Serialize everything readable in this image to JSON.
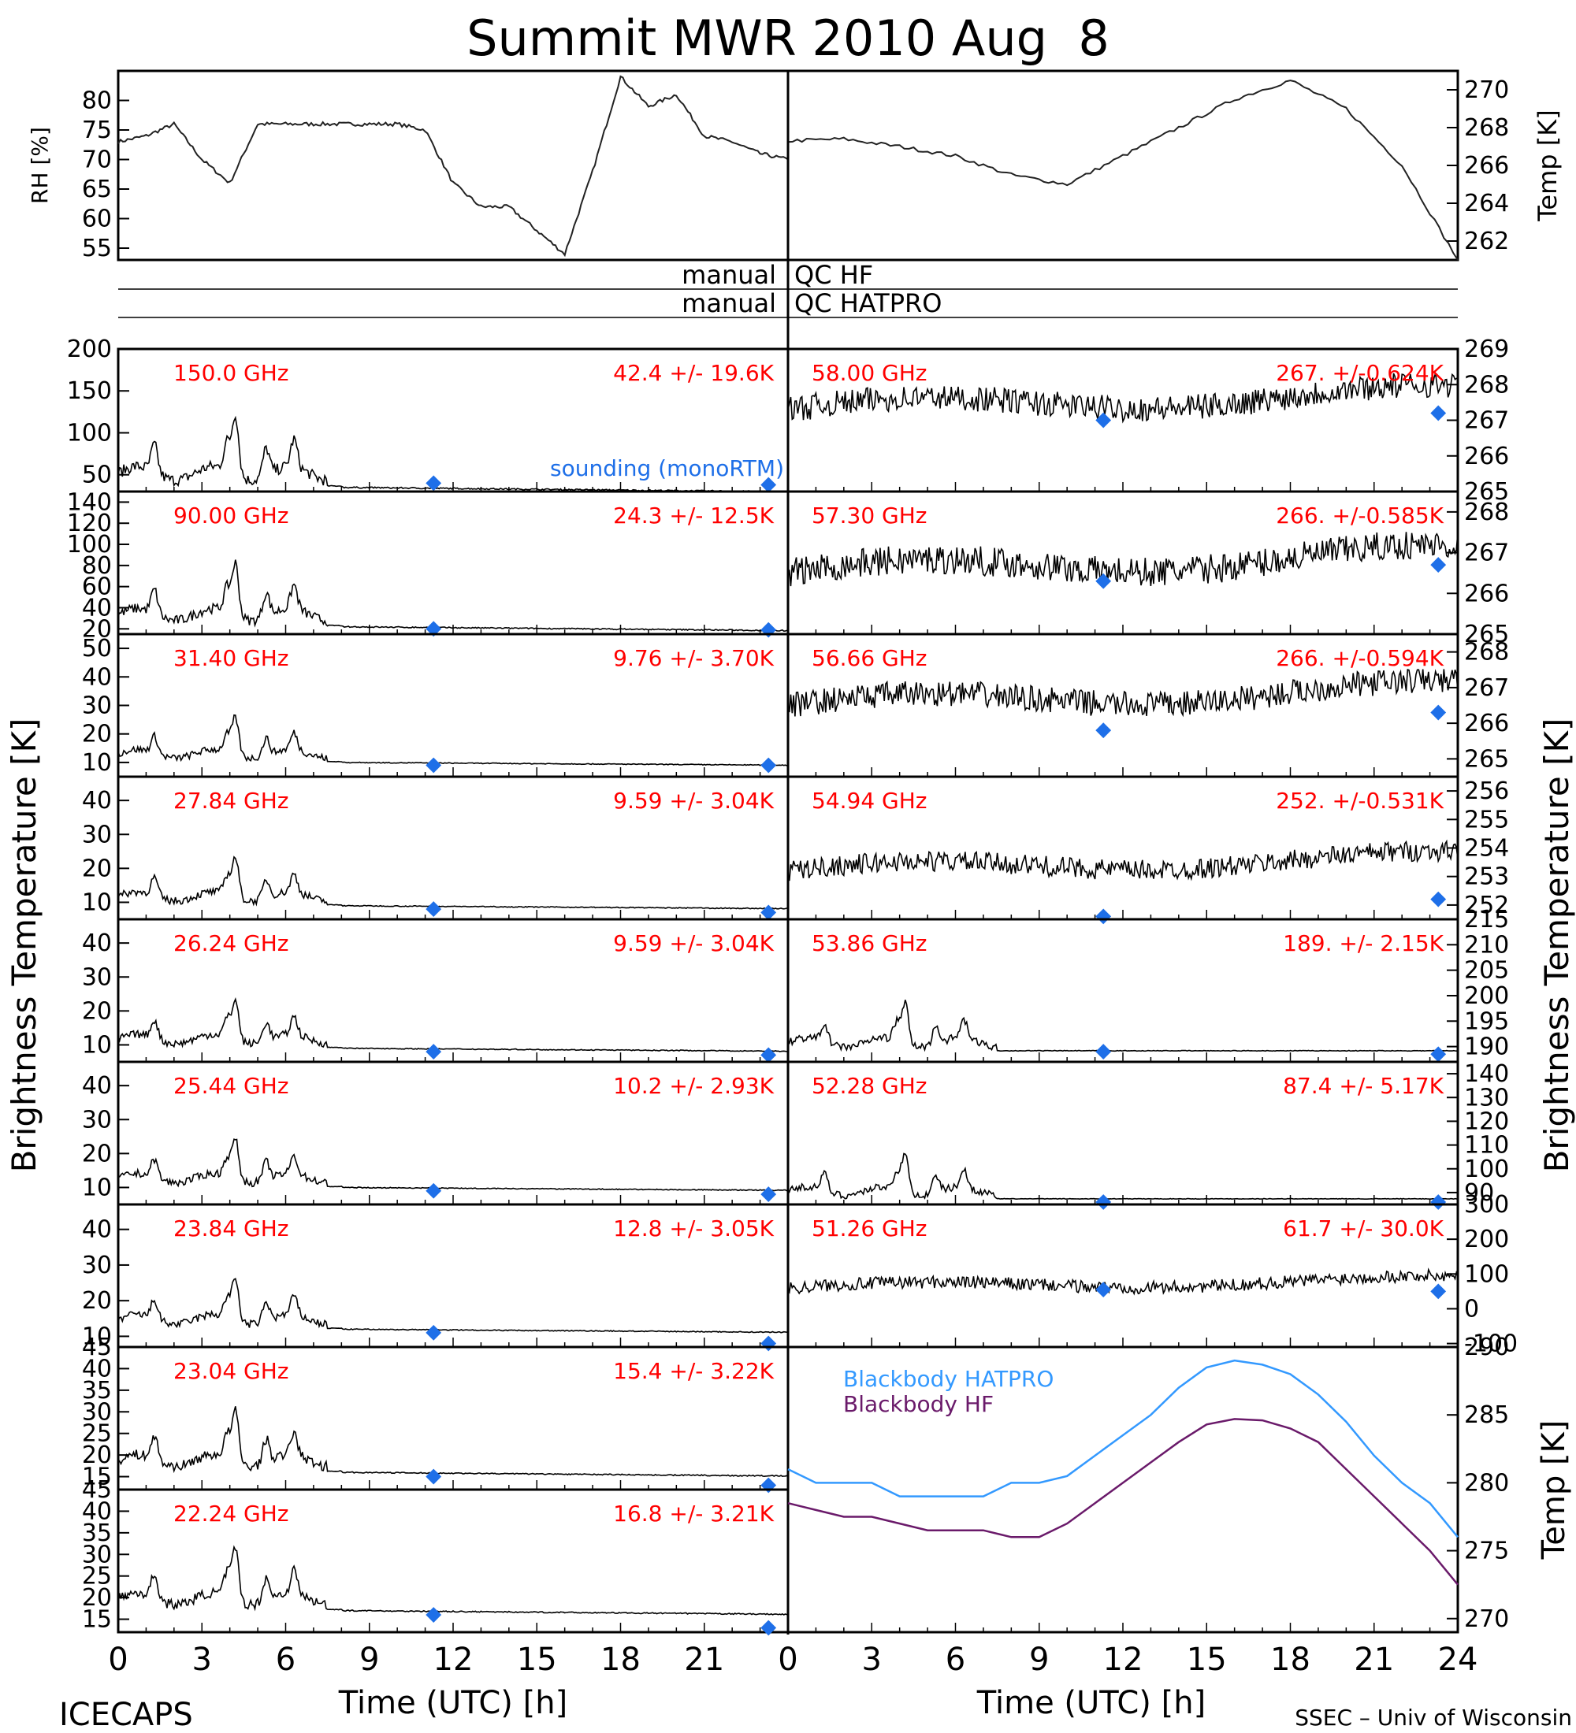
{
  "page": {
    "title": "Summit MWR 2010 Aug  8",
    "footer_left": "ICECAPS",
    "footer_right": "SSEC – Univ of Wisconsin",
    "brightness_ylabel": "Brightness Temperature [K]"
  },
  "qc": {
    "row1_left": "manual",
    "row1_right": "QC HF",
    "row2_left": "manual",
    "row2_right": "QC HATPRO"
  },
  "colors": {
    "trace": "#000000",
    "label_red": "#ff0000",
    "sounding_blue": "#1e6fe8",
    "hatpro_blue": "#3399ff",
    "hf_purple": "#6a1a6a"
  },
  "chart_data": [
    {
      "type": "line",
      "name": "rh",
      "ylabel": "RH [%]",
      "xlim": [
        0,
        12
      ],
      "ylim": [
        53,
        85
      ],
      "yticks": [
        55,
        60,
        65,
        70,
        75,
        80
      ],
      "x": [
        0,
        0.5,
        1,
        1.5,
        2,
        2.5,
        3,
        3.5,
        4,
        4.5,
        5,
        5.5,
        6,
        6.5,
        7,
        7.5,
        8,
        8.5,
        9,
        9.5,
        10,
        10.5,
        11,
        11.5,
        12
      ],
      "values": [
        73,
        74,
        76,
        70,
        66,
        76,
        76,
        76,
        76,
        76,
        76,
        75,
        66,
        62,
        62,
        58,
        54,
        68,
        84,
        79,
        81,
        74,
        73,
        71,
        70
      ]
    },
    {
      "type": "line",
      "name": "temp",
      "ylabel": "Temp [K]",
      "xlim": [
        12,
        24
      ],
      "ylim": [
        261,
        271
      ],
      "yticks": [
        262,
        264,
        266,
        268,
        270
      ],
      "x": [
        12,
        13,
        14,
        15,
        16,
        17,
        18,
        19,
        20,
        21,
        22,
        23,
        24
      ],
      "values": [
        267.3,
        267.4,
        267,
        266.5,
        265.5,
        265,
        266.5,
        268,
        269.5,
        270.5,
        269,
        266,
        261
      ]
    },
    {
      "type": "line",
      "name": "150.0 GHz",
      "label": "150.0 GHz",
      "stats": "42.4 +/-  19.6K",
      "ylim": [
        30,
        200
      ],
      "yticks": [
        50,
        100,
        150,
        200
      ],
      "base": 35,
      "amp": 55,
      "sounding": [
        40,
        38
      ],
      "sounding_label": "sounding (monoRTM)"
    },
    {
      "type": "line",
      "name": "90.00 GHz",
      "label": "90.00 GHz",
      "stats": "24.3 +/-  12.5K",
      "ylim": [
        15,
        150
      ],
      "yticks": [
        20,
        40,
        60,
        80,
        100,
        120,
        140
      ],
      "base": 22,
      "amp": 38,
      "sounding": [
        20,
        19
      ]
    },
    {
      "type": "line",
      "name": "31.40 GHz",
      "label": "31.40 GHz",
      "stats": "9.76 +/- 3.70K",
      "ylim": [
        5,
        55
      ],
      "yticks": [
        10,
        20,
        30,
        40,
        50
      ],
      "base": 10,
      "amp": 10,
      "sounding": [
        9,
        9
      ]
    },
    {
      "type": "line",
      "name": "27.84 GHz",
      "label": "27.84 GHz",
      "stats": "9.59 +/- 3.04K",
      "ylim": [
        5,
        47
      ],
      "yticks": [
        10,
        20,
        30,
        40
      ],
      "base": 9,
      "amp": 9,
      "sounding": [
        8,
        7
      ]
    },
    {
      "type": "line",
      "name": "26.24 GHz",
      "label": "26.24 GHz",
      "stats": "9.59 +/- 3.04K",
      "ylim": [
        5,
        47
      ],
      "yticks": [
        10,
        20,
        30,
        40
      ],
      "base": 9,
      "amp": 9,
      "sounding": [
        8,
        7
      ]
    },
    {
      "type": "line",
      "name": "25.44 GHz",
      "label": "25.44 GHz",
      "stats": "10.2 +/- 2.93K",
      "ylim": [
        5,
        47
      ],
      "yticks": [
        10,
        20,
        30,
        40
      ],
      "base": 10,
      "amp": 9,
      "sounding": [
        9,
        8
      ]
    },
    {
      "type": "line",
      "name": "23.84 GHz",
      "label": "23.84 GHz",
      "stats": "12.8 +/- 3.05K",
      "ylim": [
        7,
        47
      ],
      "yticks": [
        10,
        20,
        30,
        40
      ],
      "base": 12,
      "amp": 9,
      "sounding": [
        11,
        8
      ]
    },
    {
      "type": "line",
      "name": "23.04 GHz",
      "label": "23.04 GHz",
      "stats": "15.4 +/- 3.22K",
      "ylim": [
        12,
        45
      ],
      "yticks": [
        15,
        20,
        25,
        30,
        35,
        40,
        45
      ],
      "base": 16,
      "amp": 9,
      "sounding": [
        15,
        13
      ]
    },
    {
      "type": "line",
      "name": "22.24 GHz",
      "label": "22.24 GHz",
      "stats": "16.8 +/- 3.21K",
      "ylim": [
        12,
        45
      ],
      "yticks": [
        15,
        20,
        25,
        30,
        35,
        40,
        45
      ],
      "base": 17,
      "amp": 9,
      "sounding": [
        16,
        13
      ]
    },
    {
      "type": "line",
      "name": "58.00 GHz",
      "label": "58.00 GHz",
      "stats": "267. +/-0.624K",
      "ylim": [
        265,
        269
      ],
      "yticks": [
        265,
        266,
        267,
        268,
        269
      ],
      "base": 267.3,
      "amp": 0.6,
      "sounding": [
        267,
        267.2
      ]
    },
    {
      "type": "line",
      "name": "57.30 GHz",
      "label": "57.30 GHz",
      "stats": "266. +/-0.585K",
      "ylim": [
        265,
        268.5
      ],
      "yticks": [
        265,
        266,
        267,
        268
      ],
      "base": 266.5,
      "amp": 0.6,
      "sounding": [
        266.3,
        266.7
      ]
    },
    {
      "type": "line",
      "name": "56.66 GHz",
      "label": "56.66 GHz",
      "stats": "266. +/-0.594K",
      "ylim": [
        264.5,
        268.5
      ],
      "yticks": [
        265,
        266,
        267,
        268
      ],
      "base": 266.5,
      "amp": 0.6,
      "sounding": [
        265.8,
        266.3
      ]
    },
    {
      "type": "line",
      "name": "54.94 GHz",
      "label": "54.94 GHz",
      "stats": "252. +/-0.531K",
      "ylim": [
        251.5,
        256.5
      ],
      "yticks": [
        252,
        253,
        254,
        255,
        256
      ],
      "base": 253.2,
      "amp": 0.6,
      "sounding": [
        251.6,
        252.2
      ]
    },
    {
      "type": "line",
      "name": "53.86 GHz",
      "label": "53.86 GHz",
      "stats": "189. +/- 2.15K",
      "ylim": [
        187,
        215
      ],
      "yticks": [
        190,
        195,
        200,
        205,
        210,
        215
      ],
      "base": 189,
      "amp": 6,
      "sounding": [
        189,
        188.5
      ]
    },
    {
      "type": "line",
      "name": "52.28 GHz",
      "label": "52.28 GHz",
      "stats": "87.4 +/- 5.17K",
      "ylim": [
        85,
        145
      ],
      "yticks": [
        90,
        100,
        110,
        120,
        130,
        140
      ],
      "base": 87,
      "amp": 12,
      "sounding": [
        86,
        86
      ]
    },
    {
      "type": "line",
      "name": "51.26 GHz",
      "label": "51.26 GHz",
      "stats": "61.7 +/- 30.0K",
      "ylim": [
        -110,
        300
      ],
      "yticks": [
        -100,
        0,
        100,
        200,
        300
      ],
      "base": 60,
      "amp": 30,
      "sounding": [
        55,
        50
      ]
    },
    {
      "type": "line",
      "name": "blackbody",
      "ylabel": "Temp [K]",
      "xlim": [
        0,
        24
      ],
      "ylim": [
        269,
        290
      ],
      "yticks": [
        270,
        275,
        280,
        285,
        290
      ],
      "series": [
        {
          "name": "Blackbody HATPRO",
          "x": [
            0,
            1,
            2,
            3,
            4,
            5,
            6,
            7,
            8,
            9,
            10,
            11,
            12,
            13,
            14,
            15,
            16,
            17,
            18,
            19,
            20,
            21,
            22,
            23,
            24
          ],
          "values": [
            281,
            280,
            280,
            280,
            279,
            279,
            279,
            279,
            280,
            280,
            280.5,
            282,
            283.5,
            285,
            287,
            288.5,
            289,
            288.7,
            288,
            286.5,
            284.5,
            282,
            280,
            278.5,
            276
          ]
        },
        {
          "name": "Blackbody HF",
          "x": [
            0,
            1,
            2,
            3,
            4,
            5,
            6,
            7,
            8,
            9,
            10,
            11,
            12,
            13,
            14,
            15,
            16,
            17,
            18,
            19,
            20,
            21,
            22,
            23,
            24
          ],
          "values": [
            278.5,
            278,
            277.5,
            277.5,
            277,
            276.5,
            276.5,
            276.5,
            276,
            276,
            277,
            278.5,
            280,
            281.5,
            283,
            284.3,
            284.7,
            284.6,
            284,
            283,
            281,
            279,
            277,
            275,
            272.5
          ]
        }
      ]
    }
  ],
  "xaxis": {
    "left_label": "Time (UTC) [h]",
    "right_label": "Time (UTC) [h]",
    "left_ticks": [
      "0",
      "3",
      "6",
      "9",
      "12",
      "15",
      "18",
      "21"
    ],
    "right_ticks": [
      "0",
      "3",
      "6",
      "9",
      "12",
      "15",
      "18",
      "21",
      "24"
    ]
  }
}
